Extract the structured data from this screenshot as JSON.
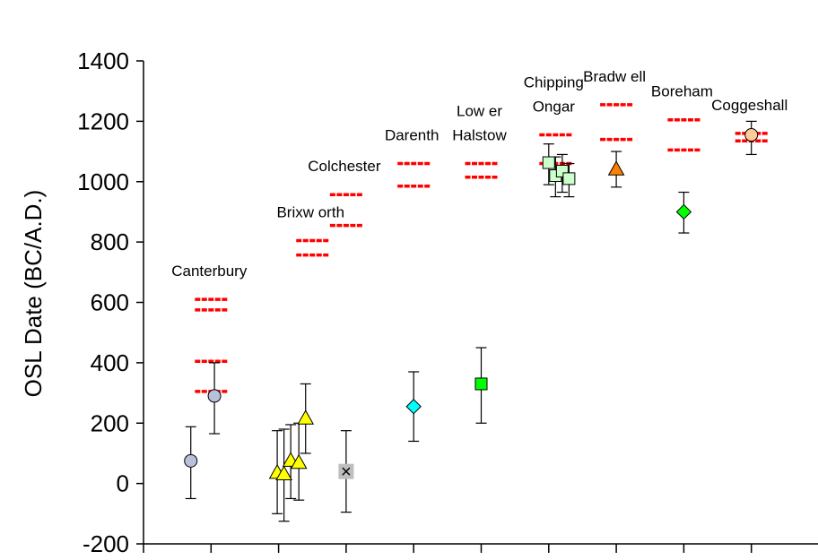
{
  "chart_data": {
    "type": "scatter",
    "title": "",
    "xlabel": "",
    "ylabel": "OSL Date (BC/A.D.)",
    "ylim": [
      -200,
      1400
    ],
    "yticks": [
      -200,
      0,
      200,
      400,
      600,
      800,
      1000,
      1200,
      1400
    ],
    "xlim": [
      0,
      10
    ],
    "xticks": [
      0,
      1,
      2,
      3,
      4,
      5,
      6,
      7,
      8,
      9,
      10
    ],
    "grid": false,
    "sites": [
      {
        "name": "Canterbury",
        "x": 1.0,
        "label_lines": [
          "Canterbury"
        ],
        "dates": [
          305,
          405,
          575,
          610
        ]
      },
      {
        "name": "Brixworth",
        "x": 2.5,
        "label_lines": [
          "Brixw orth"
        ],
        "dates": [
          757,
          805
        ]
      },
      {
        "name": "Colchester",
        "x": 3.0,
        "label_lines": [
          "Colchester"
        ],
        "dates": [
          855,
          957
        ]
      },
      {
        "name": "Darenth",
        "x": 4.0,
        "label_lines": [
          "Darenth"
        ],
        "dates": [
          985,
          1060
        ]
      },
      {
        "name": "Lower Halstow",
        "x": 5.0,
        "label_lines": [
          "Low er",
          "Halstow"
        ],
        "dates": [
          1015,
          1060
        ]
      },
      {
        "name": "Chipping Ongar",
        "x": 6.1,
        "label_lines": [
          "Chipping",
          "Ongar"
        ],
        "dates": [
          1155,
          1060
        ]
      },
      {
        "name": "Bradwell",
        "x": 7.0,
        "label_lines": [
          "Bradw ell"
        ],
        "dates": [
          1140,
          1255
        ]
      },
      {
        "name": "Boreham",
        "x": 8.0,
        "label_lines": [
          "Boreham"
        ],
        "dates": [
          1105,
          1205
        ]
      },
      {
        "name": "Coggeshall",
        "x": 9.0,
        "label_lines": [
          "Coggeshall"
        ],
        "dates": [
          1135,
          1160
        ]
      }
    ],
    "series": [
      {
        "site": "Canterbury",
        "marker": "circle",
        "color": "#b8c0dc",
        "points": [
          {
            "x": 0.7,
            "y": 75,
            "err_low": -50,
            "err_high": 188
          },
          {
            "x": 1.05,
            "y": 290,
            "err_low": 165,
            "err_high": 400
          }
        ]
      },
      {
        "site": "Brixworth",
        "marker": "triangle",
        "color": "#ffff00",
        "points": [
          {
            "x": 1.98,
            "y": 35,
            "err_low": -100,
            "err_high": 175
          },
          {
            "x": 2.08,
            "y": 30,
            "err_low": -125,
            "err_high": 180
          },
          {
            "x": 2.18,
            "y": 75,
            "err_low": -50,
            "err_high": 195
          },
          {
            "x": 2.3,
            "y": 68,
            "err_low": -55,
            "err_high": 200
          },
          {
            "x": 2.4,
            "y": 215,
            "err_low": 100,
            "err_high": 330
          }
        ]
      },
      {
        "site": "Colchester",
        "marker": "square-x",
        "color": "#bebebe",
        "points": [
          {
            "x": 3.0,
            "y": 40,
            "err_low": -95,
            "err_high": 175
          }
        ]
      },
      {
        "site": "Darenth",
        "marker": "diamond",
        "color": "#00ffff",
        "points": [
          {
            "x": 4.0,
            "y": 255,
            "err_low": 140,
            "err_high": 370
          }
        ]
      },
      {
        "site": "Lower Halstow",
        "marker": "square",
        "color": "#00ff00",
        "points": [
          {
            "x": 5.0,
            "y": 330,
            "err_low": 200,
            "err_high": 450
          }
        ]
      },
      {
        "site": "Chipping Ongar",
        "marker": "square",
        "color": "#ccffcc",
        "points": [
          {
            "x": 6.0,
            "y": 1063,
            "err_low": 990,
            "err_high": 1125
          },
          {
            "x": 6.1,
            "y": 1020,
            "err_low": 950,
            "err_high": 1082
          },
          {
            "x": 6.2,
            "y": 1035,
            "err_low": 965,
            "err_high": 1090
          },
          {
            "x": 6.3,
            "y": 1010,
            "err_low": 950,
            "err_high": 1060
          }
        ]
      },
      {
        "site": "Bradwell",
        "marker": "triangle",
        "color": "#ff8000",
        "points": [
          {
            "x": 7.0,
            "y": 1040,
            "err_low": 982,
            "err_high": 1100
          }
        ]
      },
      {
        "site": "Boreham",
        "marker": "diamond",
        "color": "#00ff00",
        "points": [
          {
            "x": 8.0,
            "y": 900,
            "err_low": 830,
            "err_high": 965
          }
        ]
      },
      {
        "site": "Coggeshall",
        "marker": "circle",
        "color": "#ffcc99",
        "points": [
          {
            "x": 9.0,
            "y": 1155,
            "err_low": 1090,
            "err_high": 1200
          }
        ]
      }
    ],
    "colors": {
      "historical_date": "#ff0000",
      "axis": "#000000",
      "error_bar": "#000000"
    }
  }
}
